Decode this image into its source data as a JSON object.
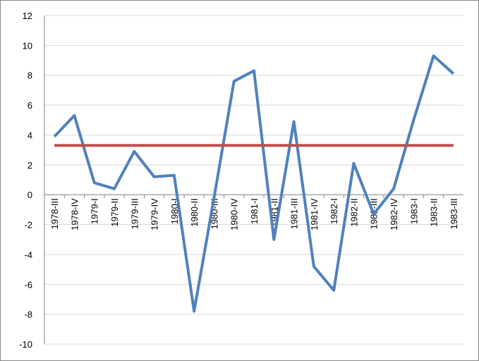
{
  "chart_data": {
    "type": "line",
    "categories": [
      "1978-III",
      "1978-IV",
      "1979-I",
      "1979-II",
      "1979-III",
      "1979-IV",
      "1980-I",
      "1980-II",
      "1980-III",
      "1980-IV",
      "1981-I",
      "1981-II",
      "1981-III",
      "1981-IV",
      "1982-I",
      "1982-II",
      "1982-III",
      "1982-IV",
      "1983-I",
      "1983-II",
      "1983-III"
    ],
    "series": [
      {
        "color": "#4f81bd",
        "values": [
          3.9,
          5.3,
          0.8,
          0.4,
          2.9,
          1.2,
          1.3,
          -7.8,
          -0.2,
          7.6,
          8.3,
          -3.0,
          4.9,
          -4.8,
          -6.4,
          2.1,
          -1.3,
          0.4,
          5.0,
          9.3,
          8.1
        ]
      },
      {
        "color": "#c0504d",
        "values": [
          3.3,
          3.3,
          3.3,
          3.3,
          3.3,
          3.3,
          3.3,
          3.3,
          3.3,
          3.3,
          3.3,
          3.3,
          3.3,
          3.3,
          3.3,
          3.3,
          3.3,
          3.3,
          3.3,
          3.3,
          3.3
        ]
      }
    ],
    "ylim": [
      -10,
      12
    ],
    "yticks": [
      -10,
      -8,
      -6,
      -4,
      -2,
      0,
      2,
      4,
      6,
      8,
      10,
      12
    ],
    "grid": true
  }
}
